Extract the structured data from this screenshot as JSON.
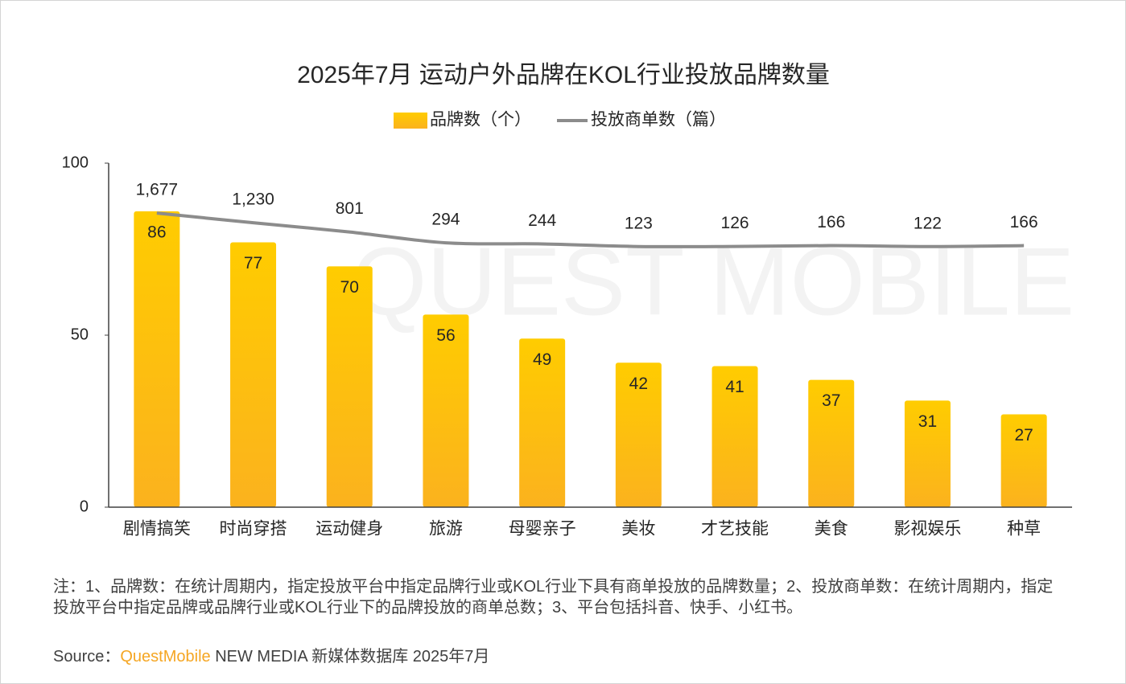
{
  "chart_data": {
    "type": "bar_line",
    "title": "2025年7月 运动户外品牌在KOL行业投放品牌数量",
    "watermark": "QUEST MOBILE",
    "categories": [
      "剧情搞笑",
      "时尚穿搭",
      "运动健身",
      "旅游",
      "母婴亲子",
      "美妆",
      "才艺技能",
      "美食",
      "影视娱乐",
      "种草"
    ],
    "series": [
      {
        "name": "品牌数（个）",
        "type": "bar",
        "color": "#fdc20f",
        "values": [
          86,
          77,
          70,
          56,
          49,
          42,
          41,
          37,
          31,
          27
        ]
      },
      {
        "name": "投放商单数（篇）",
        "type": "line",
        "axis": "y2",
        "color": "#8c8c8c",
        "values": [
          1677,
          1230,
          801,
          294,
          244,
          123,
          126,
          166,
          122,
          166
        ],
        "value_labels": [
          "1,677",
          "1,230",
          "801",
          "294",
          "244",
          "123",
          "126",
          "166",
          "122",
          "166"
        ]
      }
    ],
    "ylim": [
      0,
      100
    ],
    "yticks": [
      0,
      50,
      100
    ],
    "y2lim": [
      -12000,
      4000
    ],
    "legend": "top",
    "note": "注：1、品牌数：在统计周期内，指定投放平台中指定品牌行业或KOL行业下具有商单投放的品牌数量；2、投放商单数：在统计周期内，指定投放平台中指定品牌或品牌行业或KOL行业下的品牌投放的商单总数；3、平台包括抖音、快手、小红书。",
    "source_label": "Source：",
    "source_brand": "QuestMobile",
    "source_rest": "NEW MEDIA 新媒体数据库 2025年7月"
  }
}
